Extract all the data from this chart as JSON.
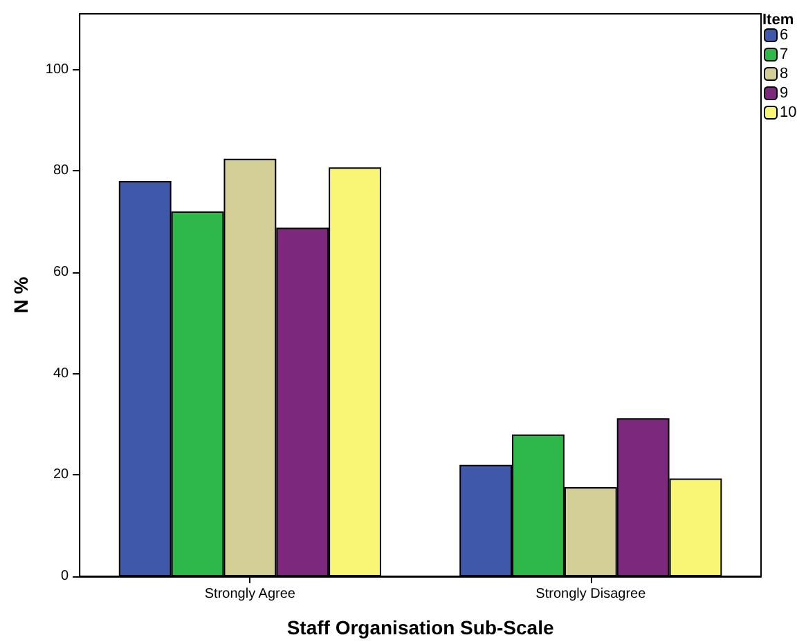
{
  "chart_data": {
    "type": "bar",
    "xlabel": "Staff Organisation Sub-Scale",
    "ylabel": "N %",
    "legend_title": "Item",
    "categories": [
      "Strongly Agree",
      "Strongly Disagree"
    ],
    "series": [
      {
        "name": "6",
        "color": "#3f58aa",
        "values": [
          78,
          22
        ]
      },
      {
        "name": "7",
        "color": "#2eb84a",
        "values": [
          72,
          28
        ]
      },
      {
        "name": "8",
        "color": "#d3cf97",
        "values": [
          82.4,
          17.6
        ]
      },
      {
        "name": "9",
        "color": "#7c287c",
        "values": [
          68.8,
          31.2
        ]
      },
      {
        "name": "10",
        "color": "#f9f675",
        "values": [
          80.7,
          19.3
        ]
      }
    ],
    "ylim": [
      0,
      111
    ],
    "yticks": [
      0,
      20,
      40,
      60,
      80,
      100
    ],
    "grid": false,
    "legend": "top right"
  }
}
